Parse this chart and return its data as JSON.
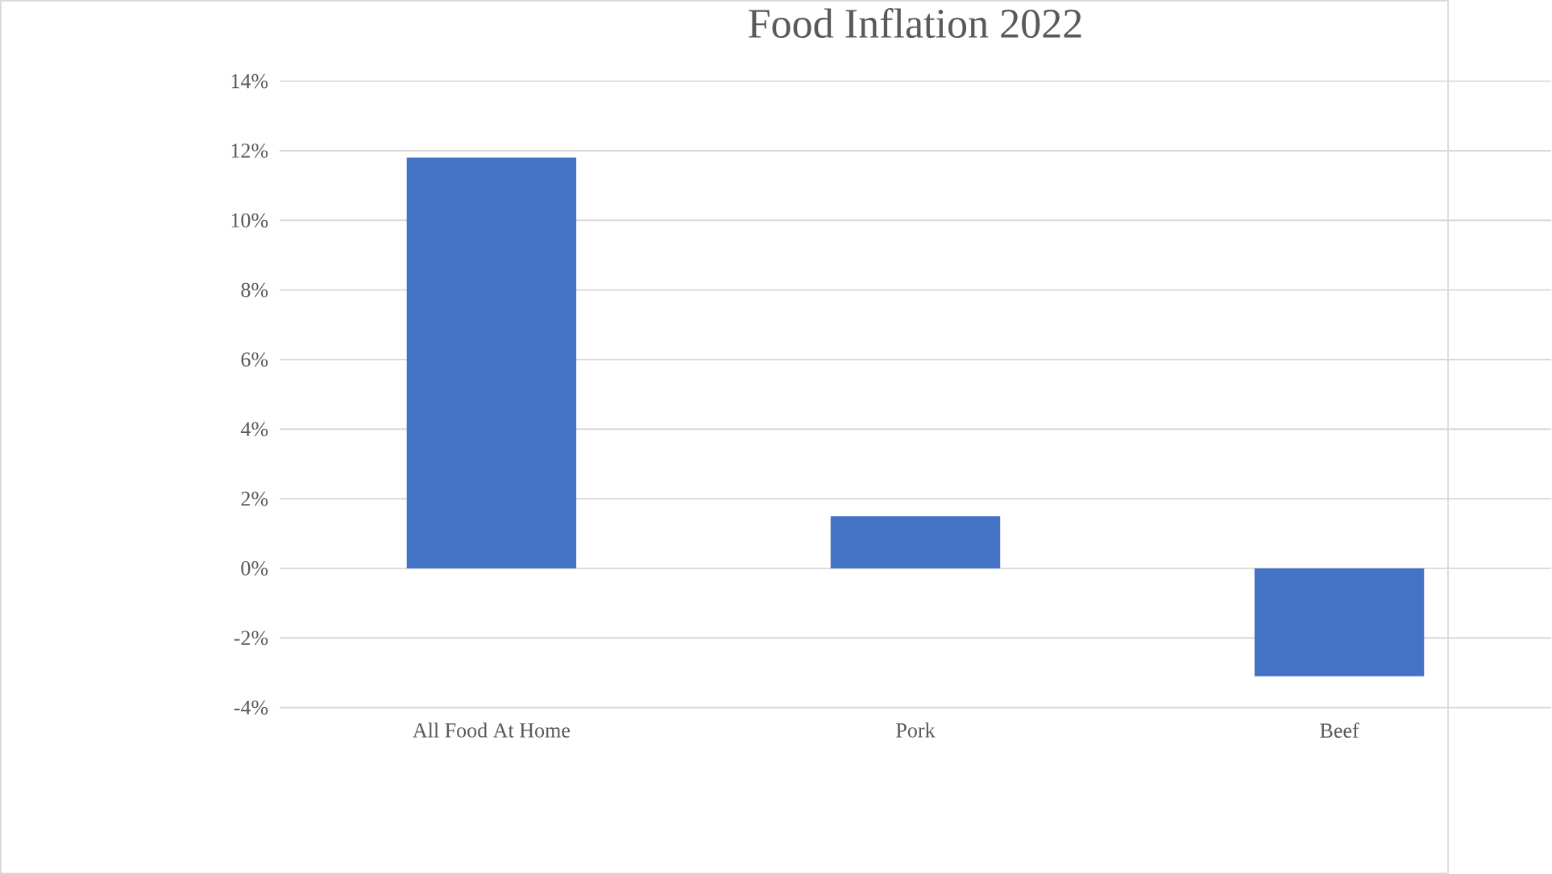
{
  "chart_data": {
    "type": "bar",
    "title": "Food Inflation 2022",
    "categories": [
      "All Food At Home",
      "Pork",
      "Beef"
    ],
    "values": [
      11.8,
      1.5,
      -3.1
    ],
    "color": "#4472c4",
    "ylim": [
      -4,
      14
    ],
    "yticks": [
      {
        "value": -4,
        "label": "-4%"
      },
      {
        "value": -2,
        "label": "-2%"
      },
      {
        "value": 0,
        "label": "0%"
      },
      {
        "value": 2,
        "label": "2%"
      },
      {
        "value": 4,
        "label": "4%"
      },
      {
        "value": 6,
        "label": "6%"
      },
      {
        "value": 8,
        "label": "8%"
      },
      {
        "value": 10,
        "label": "10%"
      },
      {
        "value": 12,
        "label": "12%"
      },
      {
        "value": 14,
        "label": "14%"
      }
    ],
    "grid": "y"
  }
}
